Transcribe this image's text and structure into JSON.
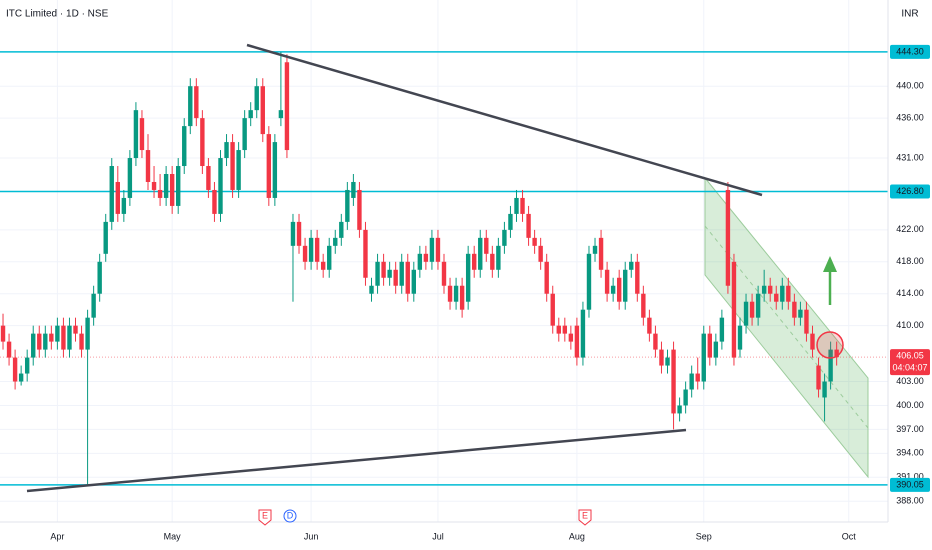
{
  "chart_data": {
    "type": "candlestick",
    "title": "ITC Limited · 1D · NSE",
    "currency": "INR",
    "up_color": "#089981",
    "down_color": "#f23645",
    "grid": true,
    "ylim": [
      385.4,
      450.8
    ],
    "yticks": [
      {
        "value": 440,
        "label": "440.00"
      },
      {
        "value": 436,
        "label": "436.00"
      },
      {
        "value": 431,
        "label": "431.00"
      },
      {
        "value": 422,
        "label": "422.00"
      },
      {
        "value": 418,
        "label": "418.00"
      },
      {
        "value": 414,
        "label": "414.00"
      },
      {
        "value": 410,
        "label": "410.00"
      },
      {
        "value": 403,
        "label": "403.00"
      },
      {
        "value": 400,
        "label": "400.00"
      },
      {
        "value": 397,
        "label": "397.00"
      },
      {
        "value": 394,
        "label": "394.00"
      },
      {
        "value": 391,
        "label": "391.00"
      },
      {
        "value": 388,
        "label": "388.00"
      }
    ],
    "xlim": [
      -0.5,
      146.5
    ],
    "xticks": [
      {
        "value": 9,
        "label": "Apr"
      },
      {
        "value": 28,
        "label": "May"
      },
      {
        "value": 51,
        "label": "Jun"
      },
      {
        "value": 72,
        "label": "Jul"
      },
      {
        "value": 95,
        "label": "Aug"
      },
      {
        "value": 116,
        "label": "Sep"
      },
      {
        "value": 140,
        "label": "Oct"
      }
    ],
    "price_lines": [
      {
        "value": 444.3,
        "label": "444.30",
        "color": "#00bcd4"
      },
      {
        "value": 426.8,
        "label": "426.80",
        "color": "#00bcd4"
      },
      {
        "value": 390.05,
        "label": "390.05",
        "color": "#00bcd4"
      }
    ],
    "current_price": {
      "value": 406.05,
      "label": "406.05",
      "countdown": "04:04:07",
      "color": "#f23645"
    },
    "event_markers": [
      "E",
      "D",
      "E"
    ],
    "ohlc": [
      [
        410,
        411.5,
        407,
        408
      ],
      [
        408,
        409,
        405,
        406
      ],
      [
        406,
        407,
        402,
        403
      ],
      [
        403,
        405,
        402.5,
        404
      ],
      [
        404,
        407,
        403,
        406
      ],
      [
        406,
        410,
        405,
        409
      ],
      [
        409,
        410,
        406,
        407
      ],
      [
        407,
        410,
        406,
        409
      ],
      [
        409,
        410,
        407,
        408
      ],
      [
        408,
        411,
        407,
        410
      ],
      [
        410,
        411,
        406,
        407
      ],
      [
        407,
        411,
        406,
        410
      ],
      [
        410,
        411,
        408,
        409
      ],
      [
        409,
        410,
        406,
        407
      ],
      [
        407,
        412,
        390.05,
        411
      ],
      [
        411,
        415,
        410,
        414
      ],
      [
        414,
        419,
        413,
        418
      ],
      [
        419,
        424,
        418,
        423
      ],
      [
        423,
        431,
        422,
        430
      ],
      [
        428,
        430,
        423,
        424
      ],
      [
        424,
        427,
        423,
        426
      ],
      [
        426,
        432,
        425,
        431
      ],
      [
        431,
        438,
        430,
        437
      ],
      [
        436,
        437,
        431,
        432
      ],
      [
        432,
        434,
        427,
        428
      ],
      [
        428,
        430,
        426,
        427
      ],
      [
        427,
        429,
        425,
        426
      ],
      [
        426,
        430,
        425,
        429
      ],
      [
        429,
        430,
        424,
        425
      ],
      [
        425,
        431,
        424,
        430
      ],
      [
        430,
        436,
        429,
        435
      ],
      [
        435,
        441,
        434,
        440
      ],
      [
        440,
        441,
        435,
        436
      ],
      [
        436,
        437,
        429,
        430
      ],
      [
        430,
        431,
        426,
        427
      ],
      [
        427,
        428,
        423,
        424
      ],
      [
        424,
        432,
        423,
        431
      ],
      [
        431,
        434,
        430,
        433
      ],
      [
        433,
        434,
        426,
        427
      ],
      [
        427,
        433,
        426,
        432
      ],
      [
        432,
        437,
        431,
        436
      ],
      [
        436,
        438,
        435,
        437
      ],
      [
        437,
        441,
        436,
        440
      ],
      [
        440,
        441,
        433,
        434
      ],
      [
        434,
        435,
        425,
        426
      ],
      [
        426,
        434,
        425,
        433
      ],
      [
        436,
        444.3,
        435,
        437
      ],
      [
        443,
        444,
        431,
        432
      ],
      [
        420,
        424,
        413,
        423
      ],
      [
        423,
        424,
        419,
        420
      ],
      [
        420,
        421,
        417,
        418
      ],
      [
        418,
        422,
        417,
        421
      ],
      [
        421,
        422,
        417,
        418
      ],
      [
        418,
        419,
        416,
        417
      ],
      [
        417,
        421,
        416,
        420
      ],
      [
        420,
        422,
        419,
        421
      ],
      [
        421,
        424,
        420,
        423
      ],
      [
        423,
        428,
        422,
        427
      ],
      [
        426,
        429,
        425,
        428
      ],
      [
        427,
        428,
        421,
        422
      ],
      [
        422,
        423,
        415,
        416
      ],
      [
        414,
        416,
        413,
        415
      ],
      [
        415,
        419,
        414,
        418
      ],
      [
        418,
        419,
        415,
        416
      ],
      [
        416,
        418,
        415,
        417
      ],
      [
        417,
        418,
        414,
        415
      ],
      [
        415,
        419,
        414,
        418
      ],
      [
        418,
        419,
        413,
        414
      ],
      [
        414,
        418,
        413,
        417
      ],
      [
        417,
        420,
        416,
        419
      ],
      [
        419,
        420,
        417,
        418
      ],
      [
        418,
        422,
        417,
        421
      ],
      [
        421,
        422,
        417,
        418
      ],
      [
        418,
        419,
        414,
        415
      ],
      [
        415,
        416,
        412,
        413
      ],
      [
        413,
        416,
        412,
        415
      ],
      [
        415,
        416,
        411,
        412
      ],
      [
        413,
        420,
        412,
        419
      ],
      [
        419,
        420,
        416,
        417
      ],
      [
        417,
        422,
        416,
        421
      ],
      [
        421,
        422,
        418,
        419
      ],
      [
        419,
        420,
        416,
        417
      ],
      [
        417,
        421,
        416,
        420
      ],
      [
        420,
        423,
        419,
        422
      ],
      [
        422,
        425,
        421,
        424
      ],
      [
        424,
        427,
        423,
        426
      ],
      [
        426,
        427,
        423,
        424
      ],
      [
        424,
        425,
        420,
        421
      ],
      [
        421,
        422,
        419,
        420
      ],
      [
        420,
        421,
        417,
        418
      ],
      [
        418,
        419,
        413,
        414
      ],
      [
        414,
        415,
        409,
        410
      ],
      [
        410,
        411,
        408,
        409
      ],
      [
        410,
        411,
        408,
        409
      ],
      [
        409,
        410,
        407,
        408
      ],
      [
        410,
        411,
        405,
        406
      ],
      [
        406,
        413,
        405,
        412
      ],
      [
        412,
        420,
        411,
        419
      ],
      [
        419,
        421,
        418,
        420
      ],
      [
        421,
        422,
        416,
        417
      ],
      [
        417,
        418,
        413,
        414
      ],
      [
        414,
        416,
        413,
        415
      ],
      [
        416,
        417,
        412,
        413
      ],
      [
        413,
        418,
        412,
        417
      ],
      [
        417,
        419,
        416,
        418
      ],
      [
        418,
        419,
        413,
        414
      ],
      [
        414,
        415,
        410,
        411
      ],
      [
        411,
        412,
        408,
        409
      ],
      [
        409,
        410,
        406,
        407
      ],
      [
        407,
        408,
        404,
        405
      ],
      [
        405,
        407,
        404,
        406
      ],
      [
        407,
        408,
        397,
        399
      ],
      [
        399,
        401,
        398,
        400
      ],
      [
        400,
        403,
        399,
        402
      ],
      [
        402,
        405,
        401,
        404
      ],
      [
        404,
        406,
        402,
        403
      ],
      [
        403,
        410,
        402,
        409
      ],
      [
        409,
        410,
        405,
        406
      ],
      [
        406,
        409,
        405,
        408
      ],
      [
        408,
        412,
        407,
        411
      ],
      [
        427,
        428,
        414,
        415
      ],
      [
        418,
        419,
        405,
        406
      ],
      [
        407,
        411,
        406,
        410
      ],
      [
        410,
        414,
        409,
        413
      ],
      [
        413,
        414,
        410,
        411
      ],
      [
        411,
        415,
        410,
        414
      ],
      [
        414,
        417,
        413,
        415
      ],
      [
        415,
        416,
        413,
        414
      ],
      [
        414,
        415,
        412,
        413
      ],
      [
        413,
        416,
        412,
        415
      ],
      [
        415,
        416,
        412,
        413
      ],
      [
        413,
        414,
        410,
        411
      ],
      [
        411,
        413,
        410,
        412
      ],
      [
        412,
        413,
        408,
        409
      ],
      [
        409,
        410,
        406,
        407
      ],
      [
        405,
        406,
        401,
        402
      ],
      [
        401,
        404,
        398,
        403
      ],
      [
        403,
        408,
        402,
        407
      ],
      [
        407,
        408,
        405,
        406.05
      ]
    ]
  }
}
